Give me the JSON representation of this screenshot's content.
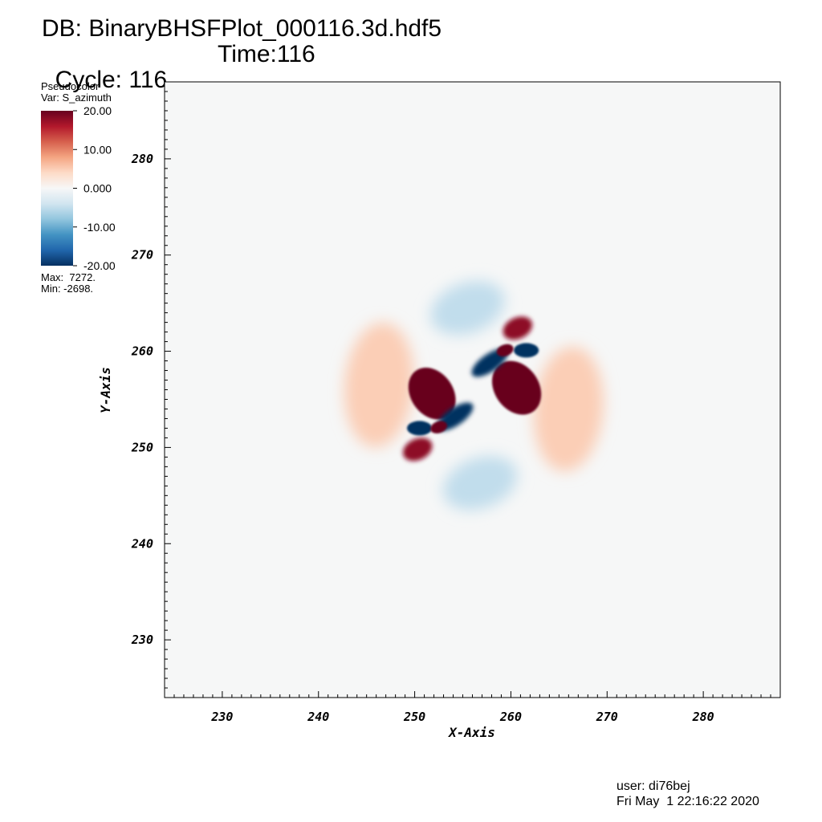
{
  "header": {
    "db_line": "DB: BinaryBHSFPlot_000116.3d.hdf5",
    "cycle_label": "Cycle: 116",
    "time_label": "Time:116"
  },
  "legend": {
    "plot_type": "Pseudocolor",
    "var_label": "Var: S_azimuth",
    "ticks": [
      "20.00",
      "10.00",
      "0.000",
      "-10.00",
      "-20.00"
    ],
    "max_label": "Max:  7272.",
    "min_label": "Min: -2698.",
    "colormap": [
      "#67001f",
      "#b2182b",
      "#d6604d",
      "#f4a582",
      "#fddbc7",
      "#f7f7f7",
      "#d1e5f0",
      "#92c5de",
      "#4393c3",
      "#2166ac",
      "#053061"
    ]
  },
  "footer": {
    "user": "user: di76bej",
    "date": "Fri May  1 22:16:22 2020"
  },
  "chart_data": {
    "type": "heatmap",
    "variable": "S_azimuth",
    "xlabel": "X-Axis",
    "ylabel": "Y-Axis",
    "xlim": [
      224,
      288
    ],
    "ylim": [
      224,
      288
    ],
    "xticks": [
      230,
      240,
      250,
      260,
      270,
      280
    ],
    "yticks": [
      230,
      240,
      250,
      260,
      270,
      280
    ],
    "color_range": [
      -20,
      20
    ],
    "data_max": 7272,
    "data_min": -2698,
    "background_value": 0,
    "features": [
      {
        "x": 251.8,
        "y": 255.6,
        "value": 20
      },
      {
        "x": 260.6,
        "y": 256.2,
        "value": 20
      },
      {
        "x": 250.5,
        "y": 252.0,
        "value": -20
      },
      {
        "x": 254.2,
        "y": 253.2,
        "value": -20
      },
      {
        "x": 257.8,
        "y": 258.8,
        "value": -20
      },
      {
        "x": 261.6,
        "y": 260.1,
        "value": -20
      },
      {
        "x": 252.5,
        "y": 252.1,
        "value": 20
      },
      {
        "x": 259.4,
        "y": 260.1,
        "value": 20
      },
      {
        "x": 250.3,
        "y": 249.8,
        "value": 18
      },
      {
        "x": 260.7,
        "y": 262.4,
        "value": 18
      },
      {
        "x": 246.3,
        "y": 256.5,
        "value": 5
      },
      {
        "x": 266.0,
        "y": 254.0,
        "value": 5
      },
      {
        "x": 255.5,
        "y": 264.5,
        "value": -5
      },
      {
        "x": 256.8,
        "y": 246.3,
        "value": -5
      }
    ]
  }
}
